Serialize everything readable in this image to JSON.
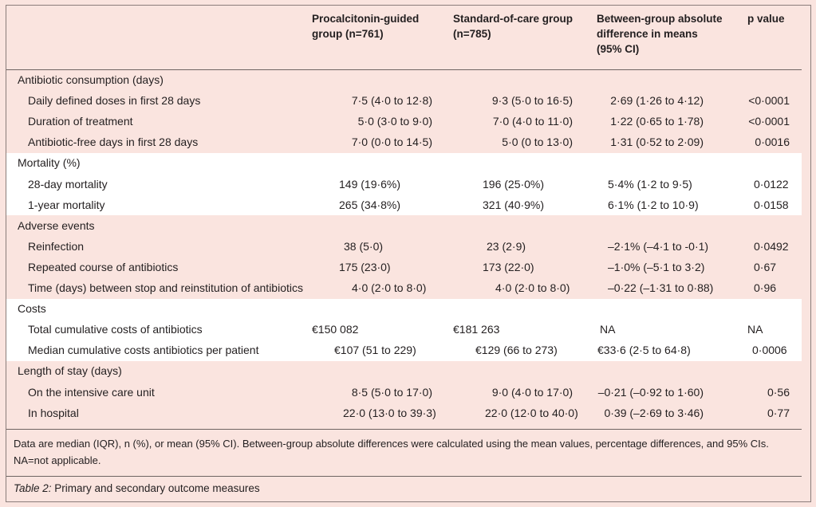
{
  "headers": {
    "col1": [
      "Procalcitonin-guided",
      "group (n=761)"
    ],
    "col2": [
      "Standard-of-care group",
      "(n=785)"
    ],
    "col3": [
      "Between-group absolute",
      "difference in means",
      "(95% CI)"
    ],
    "col4": "p value"
  },
  "sections": [
    {
      "title": "Antibiotic consumption (days)",
      "rows": [
        {
          "label": "Daily defined doses in first 28 days",
          "v1": "7·5 (4·0 to 12·8)",
          "v2": "9·3 (5·0 to 16·5)",
          "v3": "2·69 (1·26 to 4·12)",
          "p": "<0·0001"
        },
        {
          "label": "Duration of treatment",
          "v1": "5·0 (3·0 to 9·0)",
          "v2": "7·0 (4·0 to 11·0)",
          "v3": "1·22 (0·65 to 1·78)",
          "p": "<0·0001"
        },
        {
          "label": "Antibiotic-free days in first 28 days",
          "v1": "7·0 (0·0 to 14·5)",
          "v2": "5·0 (0 to 13·0)",
          "v3": "1·31 (0·52 to 2·09)",
          "p": "0·0016"
        }
      ]
    },
    {
      "title": "Mortality (%)",
      "rows": [
        {
          "label": "28-day mortality",
          "v1": "149 (19·6%)",
          "v2": "196 (25·0%)",
          "v3": "5·4% (1·2 to 9·5)",
          "p": "0·0122"
        },
        {
          "label": "1-year mortality",
          "v1": "265 (34·8%)",
          "v2": "321 (40·9%)",
          "v3": "6·1% (1·2 to 10·9)",
          "p": "0·0158"
        }
      ]
    },
    {
      "title": "Adverse events",
      "rows": [
        {
          "label": "Reinfection",
          "v1": "38 (5·0)",
          "v2": "23 (2·9)",
          "v3": "–2·1% (–4·1 to -0·1)",
          "p": "0·0492"
        },
        {
          "label": "Repeated course of antibiotics",
          "v1": "175 (23·0)",
          "v2": "173 (22·0)",
          "v3": "–1·0% (–5·1 to 3·2)",
          "p": "0·67"
        },
        {
          "label": "Time (days) between stop and reinstitution of antibiotics",
          "v1": "4·0 (2·0 to 8·0)",
          "v2": "4·0 (2·0 to 8·0)",
          "v3": "–0·22 (–1·31 to 0·88)",
          "p": "0·96"
        }
      ]
    },
    {
      "title": "Costs",
      "rows": [
        {
          "label": "Total cumulative costs of antibiotics",
          "v1": "€150 082",
          "v2": "€181 263",
          "v3": "NA",
          "p": "NA"
        },
        {
          "label": "Median cumulative costs antibiotics per patient",
          "v1": "€107 (51 to 229)",
          "v2": "€129 (66 to 273)",
          "v3": "€33·6 (2·5 to 64·8)",
          "p": "0·0006"
        }
      ]
    },
    {
      "title": "Length of stay (days)",
      "rows": [
        {
          "label": "On the intensive care unit",
          "v1": "8·5 (5·0 to 17·0)",
          "v2": "9·0 (4·0 to 17·0)",
          "v3": "–0·21 (–0·92 to 1·60)",
          "p": "0·56"
        },
        {
          "label": "In hospital",
          "v1": "22·0 (13·0 to 39·3)",
          "v2": "22·0 (12·0 to 40·0)",
          "v3": "0·39 (–2·69 to 3·46)",
          "p": "0·77"
        }
      ]
    }
  ],
  "footnote": [
    "Data are median (IQR), n (%), or mean (95% CI). Between-group absolute differences were calculated using the mean values, percentage differences, and 95% CIs.",
    "NA=not applicable."
  ],
  "caption": {
    "label": "Table 2:",
    "text": " Primary and secondary outcome measures"
  }
}
